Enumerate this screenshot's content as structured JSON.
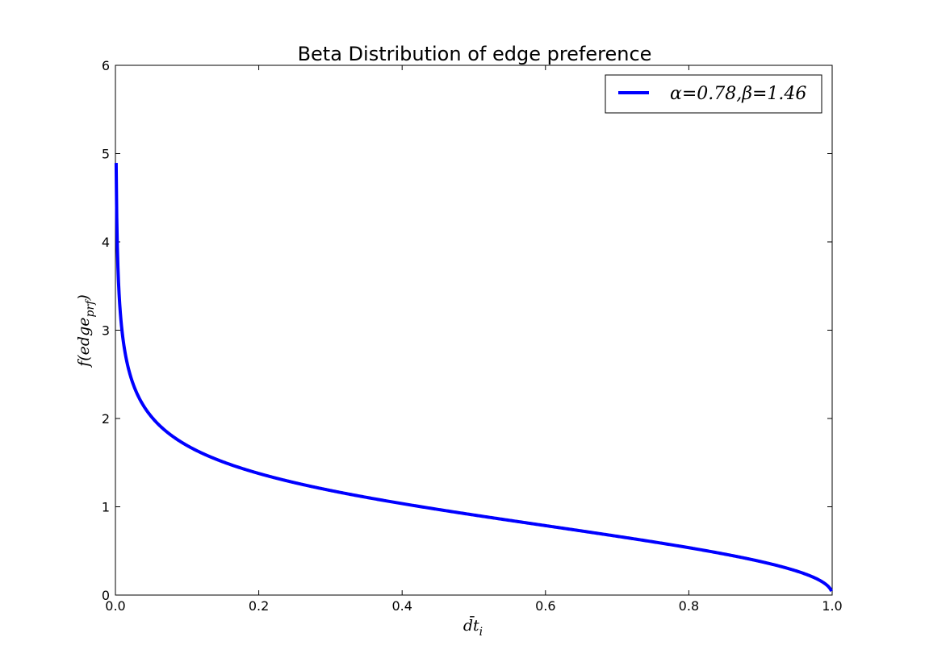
{
  "chart_data": {
    "type": "line",
    "title": "Beta Distribution of edge preference",
    "xlabel": "d̄t",
    "xlabel_sub": "i",
    "ylabel": "f(edge",
    "ylabel_sub": "prf",
    "ylabel_close": ")",
    "xlim": [
      0.0,
      1.0
    ],
    "ylim": [
      0,
      6
    ],
    "x_ticks": [
      0.0,
      0.2,
      0.4,
      0.6,
      0.8,
      1.0
    ],
    "x_tick_labels": [
      "0.0",
      "0.2",
      "0.4",
      "0.6",
      "0.8",
      "1.0"
    ],
    "y_ticks": [
      0,
      1,
      2,
      3,
      4,
      5,
      6
    ],
    "y_tick_labels": [
      "0",
      "1",
      "2",
      "3",
      "4",
      "5",
      "6"
    ],
    "grid": false,
    "legend_position": "upper-right",
    "series": [
      {
        "name": "α=0.78,β=1.46",
        "color": "#0000ff",
        "distribution": "beta",
        "alpha": 0.78,
        "beta": 1.46,
        "x_start": 0.001,
        "x_end": 0.999,
        "sample_x": [
          0.001,
          0.01,
          0.02,
          0.05,
          0.1,
          0.2,
          0.3,
          0.4,
          0.5,
          0.6,
          0.7,
          0.8,
          0.9,
          0.95,
          0.999
        ],
        "sample_y": [
          5.15,
          3.2,
          2.68,
          2.05,
          1.68,
          1.36,
          1.16,
          1.02,
          0.89,
          0.77,
          0.65,
          0.52,
          0.36,
          0.26,
          0.05
        ]
      }
    ]
  }
}
